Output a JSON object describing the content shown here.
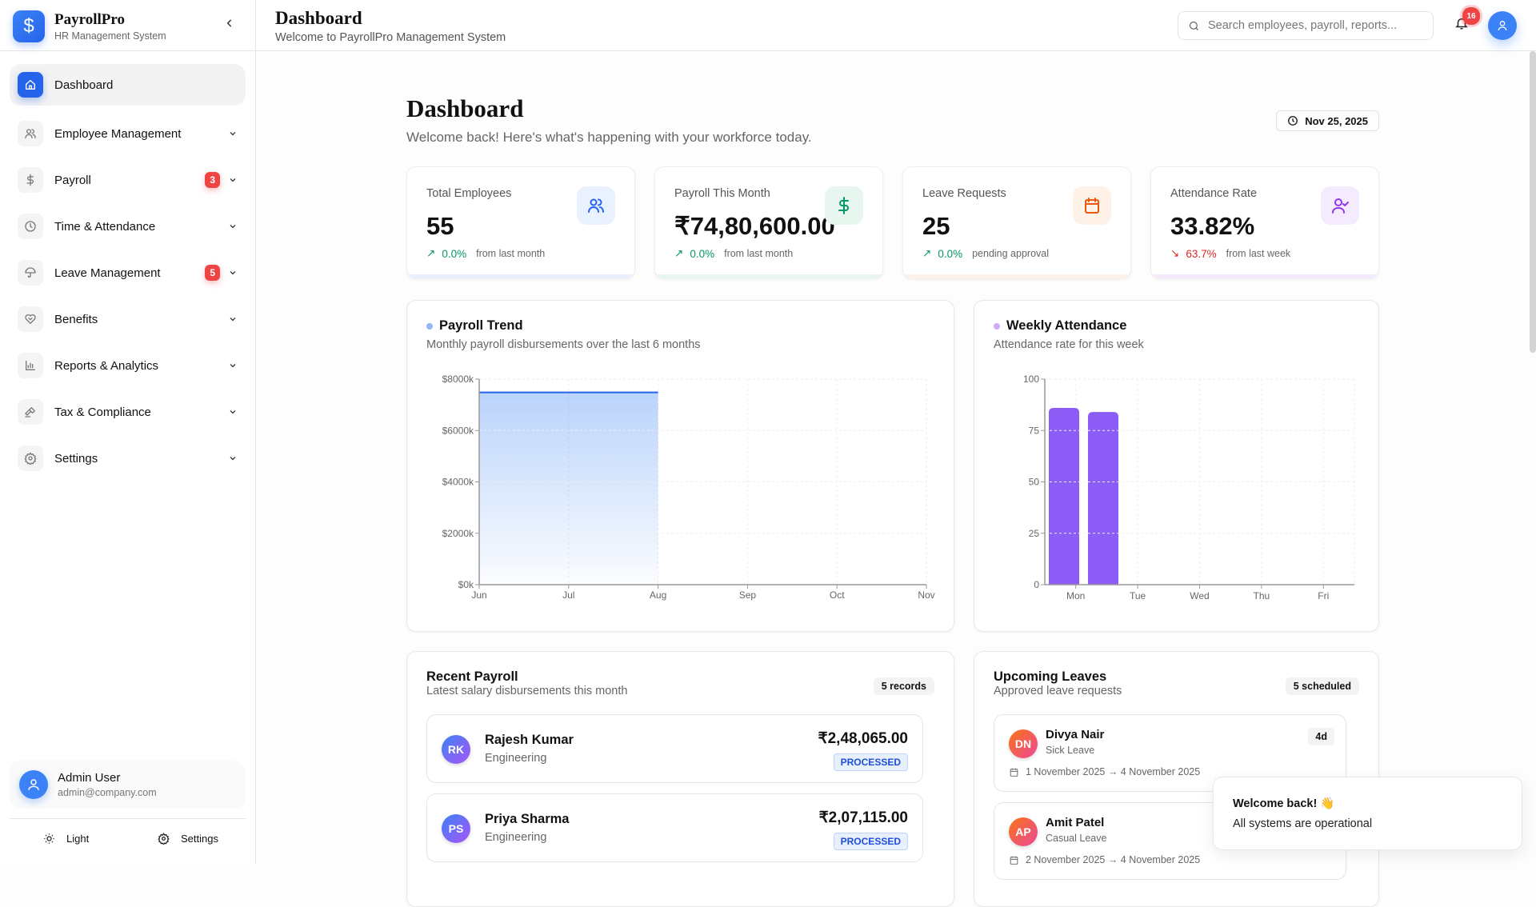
{
  "app": {
    "name": "PayrollPro",
    "subtitle": "HR Management System"
  },
  "sidebar": {
    "items": [
      {
        "label": "Dashboard",
        "icon": "home-icon",
        "active": true
      },
      {
        "label": "Employee Management",
        "icon": "users-icon"
      },
      {
        "label": "Payroll",
        "icon": "dollar-icon",
        "badge": "3"
      },
      {
        "label": "Time & Attendance",
        "icon": "clock-icon"
      },
      {
        "label": "Leave Management",
        "icon": "umbrella-icon",
        "badge": "5"
      },
      {
        "label": "Benefits",
        "icon": "heart-handshake-icon"
      },
      {
        "label": "Reports & Analytics",
        "icon": "bar-chart-icon"
      },
      {
        "label": "Tax & Compliance",
        "icon": "gavel-icon"
      },
      {
        "label": "Settings",
        "icon": "gear-icon"
      }
    ],
    "user": {
      "name": "Admin User",
      "email": "admin@company.com"
    },
    "footer": {
      "theme_label": "Light",
      "settings_label": "Settings"
    }
  },
  "header": {
    "title": "Dashboard",
    "subtitle": "Welcome to PayrollPro Management System",
    "search_placeholder": "Search employees, payroll, reports...",
    "notifications": "16"
  },
  "page": {
    "title": "Dashboard",
    "subtitle": "Welcome back! Here's what's happening with your workforce today.",
    "date": "Nov 25, 2025"
  },
  "stats": [
    {
      "title": "Total Employees",
      "value": "55",
      "change": "0.0%",
      "trend": "up",
      "note": "from last month",
      "icon": "users-icon",
      "color": "#2563eb",
      "bg": "#eaf1fe"
    },
    {
      "title": "Payroll This Month",
      "value": "₹74,80,600.00",
      "change": "0.0%",
      "trend": "up",
      "note": "from last month",
      "icon": "dollar-icon",
      "color": "#059669",
      "bg": "#e7f7ef"
    },
    {
      "title": "Leave Requests",
      "value": "25",
      "change": "0.0%",
      "trend": "up",
      "note": "pending approval",
      "icon": "calendar-icon",
      "color": "#ea580c",
      "bg": "#fef1e8"
    },
    {
      "title": "Attendance Rate",
      "value": "33.82%",
      "change": "63.7%",
      "trend": "down",
      "note": "from last week",
      "icon": "user-check-icon",
      "color": "#9333ea",
      "bg": "#f4ecfe"
    }
  ],
  "chart_data": [
    {
      "type": "area",
      "title": "Payroll Trend",
      "subtitle": "Monthly payroll disbursements over the last 6 months",
      "categories": [
        "Jun",
        "Jul",
        "Aug",
        "Sep",
        "Oct",
        "Nov"
      ],
      "values": [
        7480.6,
        7480.6,
        7480.6,
        null,
        null,
        null
      ],
      "yticks": [
        "$0k",
        "$2000k",
        "$4000k",
        "$6000k",
        "$8000k"
      ],
      "ylim": [
        0,
        8000
      ],
      "grid": true,
      "color": "#3b82f6"
    },
    {
      "type": "bar",
      "title": "Weekly Attendance",
      "subtitle": "Attendance rate for this week",
      "categories": [
        "Mon",
        "Tue",
        "Wed",
        "Thu",
        "Fri"
      ],
      "bars": [
        {
          "category": "Mon",
          "value": 86
        },
        {
          "category": "Mon",
          "value": 84
        }
      ],
      "yticks": [
        "0",
        "25",
        "50",
        "75",
        "100"
      ],
      "ylim": [
        0,
        100
      ],
      "grid": true,
      "color": "#8b5cf6"
    }
  ],
  "recent_payroll": {
    "title": "Recent Payroll",
    "subtitle": "Latest salary disbursements this month",
    "count": "5 records",
    "rows": [
      {
        "initials": "RK",
        "name": "Rajesh Kumar",
        "dept": "Engineering",
        "amount": "₹2,48,065.00",
        "status": "PROCESSED"
      },
      {
        "initials": "PS",
        "name": "Priya Sharma",
        "dept": "Engineering",
        "amount": "₹2,07,115.00",
        "status": "PROCESSED"
      }
    ]
  },
  "upcoming_leaves": {
    "title": "Upcoming Leaves",
    "subtitle": "Approved leave requests",
    "count": "5 scheduled",
    "rows": [
      {
        "initials": "DN",
        "name": "Divya Nair",
        "type": "Sick Leave",
        "days": "4d",
        "range": "1 November 2025 → 4 November 2025"
      },
      {
        "initials": "AP",
        "name": "Amit Patel",
        "type": "Casual Leave",
        "range": "2 November 2025 → 4 November 2025"
      }
    ]
  },
  "toast": {
    "title": "Welcome back! 👋",
    "message": "All systems are operational"
  }
}
